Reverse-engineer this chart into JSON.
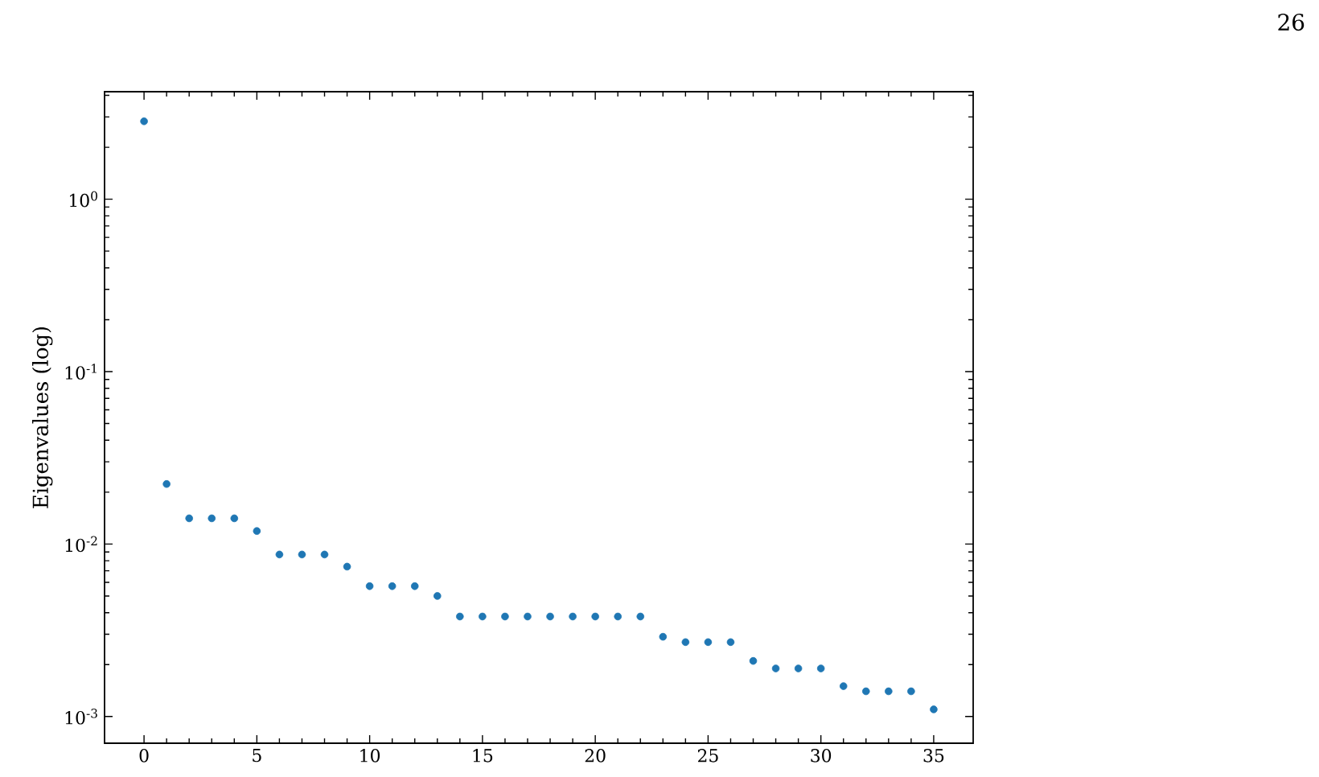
{
  "chart_data": {
    "type": "scatter",
    "ylabel": "Eigenvalues (log)",
    "annotations": [
      "26"
    ],
    "log": "y",
    "marker": "circle",
    "x": [
      0,
      1,
      2,
      3,
      4,
      5,
      6,
      7,
      8,
      9,
      10,
      11,
      12,
      13,
      14,
      15,
      16,
      17,
      18,
      19,
      20,
      21,
      22,
      23,
      24,
      25,
      26,
      27,
      28,
      29,
      30,
      31,
      32,
      33,
      34,
      35
    ],
    "series": [
      {
        "color": "#1f77b4",
        "values": [
          2.83,
          0.0223,
          0.0141,
          0.0141,
          0.0141,
          0.0119,
          0.0087,
          0.0087,
          0.0087,
          0.0074,
          0.0057,
          0.0057,
          0.0057,
          0.005,
          0.0038,
          0.0038,
          0.0038,
          0.0038,
          0.0038,
          0.0038,
          0.0038,
          0.0038,
          0.0038,
          0.0029,
          0.0027,
          0.0027,
          0.0027,
          0.0021,
          0.0019,
          0.0019,
          0.0019,
          0.0015,
          0.0014,
          0.0014,
          0.0014,
          0.0011
        ]
      }
    ],
    "xlim": [
      -1.75,
      36.75
    ],
    "xticks": [
      0,
      5,
      10,
      15,
      20,
      25,
      30,
      35
    ],
    "ylim": [
      0.0007,
      4.2
    ],
    "yticks": [
      {
        "value": 0.001,
        "label": "10$^{-3}$"
      },
      {
        "value": 0.01,
        "label": "10$^{-2}$"
      },
      {
        "value": 0.1,
        "label": "10$^{-1}$"
      },
      {
        "value": 1,
        "label": "10$^{0}$"
      }
    ]
  }
}
